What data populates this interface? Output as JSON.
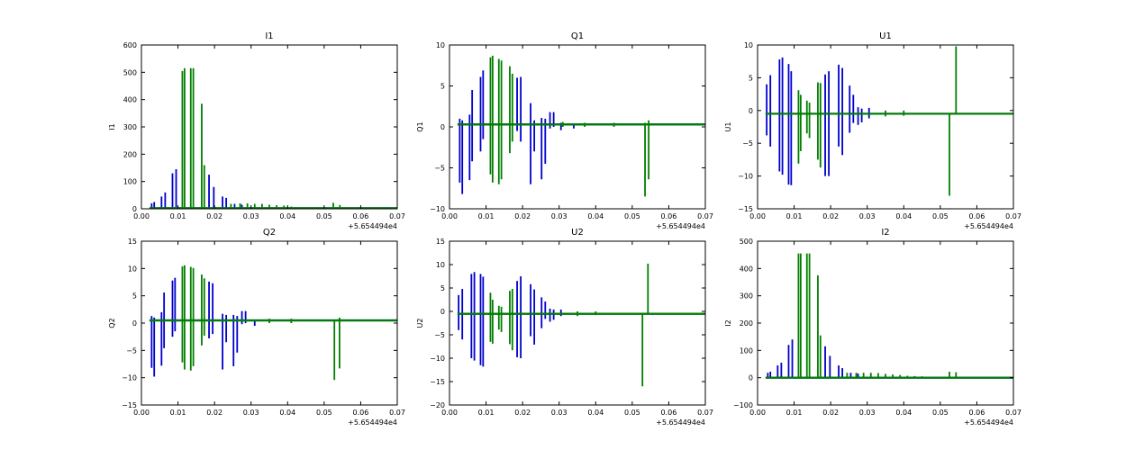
{
  "colors": {
    "series_a": "#0000cc",
    "series_b": "#007f00"
  },
  "chart_data": [
    {
      "type": "line",
      "title": "I1",
      "ylabel": "I1",
      "xlim": [
        0,
        0.07
      ],
      "ylim": [
        0,
        600
      ],
      "x_ticks": [
        "0.00",
        "0.01",
        "0.02",
        "0.03",
        "0.04",
        "0.05",
        "0.06",
        "0.07"
      ],
      "y_ticks": [
        "0",
        "100",
        "200",
        "300",
        "400",
        "500",
        "600"
      ],
      "y_tick_values": [
        0,
        100,
        200,
        300,
        400,
        500,
        600
      ],
      "offset_text": "+5.654494e4",
      "baseline": 2,
      "series": [
        {
          "color": "series_a",
          "spikes": [
            [
              0.0028,
              20,
              0
            ],
            [
              0.0035,
              25,
              0
            ],
            [
              0.0055,
              45,
              0
            ],
            [
              0.0065,
              60,
              0
            ],
            [
              0.0085,
              130,
              0
            ],
            [
              0.0095,
              145,
              0
            ],
            [
              0.0185,
              125,
              0
            ],
            [
              0.0198,
              80,
              0
            ],
            [
              0.0222,
              45,
              0
            ],
            [
              0.0232,
              40,
              0
            ],
            [
              0.0255,
              18,
              0
            ],
            [
              0.0275,
              15,
              0
            ]
          ]
        },
        {
          "color": "series_b",
          "spikes": [
            [
              0.0112,
              505,
              0
            ],
            [
              0.0118,
              515,
              0
            ],
            [
              0.0135,
              515,
              0
            ],
            [
              0.0142,
              515,
              0
            ],
            [
              0.0165,
              385,
              0
            ],
            [
              0.0172,
              160,
              0
            ],
            [
              0.0245,
              18,
              0
            ],
            [
              0.027,
              20,
              0
            ],
            [
              0.029,
              20,
              0
            ],
            [
              0.031,
              18,
              0
            ],
            [
              0.033,
              18,
              0
            ],
            [
              0.035,
              15,
              0
            ],
            [
              0.037,
              13,
              0
            ],
            [
              0.039,
              12,
              0
            ],
            [
              0.041,
              8,
              0
            ],
            [
              0.043,
              6,
              0
            ],
            [
              0.045,
              5,
              0
            ],
            [
              0.047,
              5,
              0
            ],
            [
              0.0525,
              22,
              0
            ],
            [
              0.0543,
              14,
              0
            ]
          ]
        }
      ]
    },
    {
      "type": "line",
      "title": "Q1",
      "ylabel": "Q1",
      "xlim": [
        0,
        0.07
      ],
      "ylim": [
        -10,
        10
      ],
      "x_ticks": [
        "0.00",
        "0.01",
        "0.02",
        "0.03",
        "0.04",
        "0.05",
        "0.06",
        "0.07"
      ],
      "y_ticks": [
        "−10",
        "−5",
        "0",
        "5",
        "10"
      ],
      "y_tick_values": [
        -10,
        -5,
        0,
        5,
        10
      ],
      "offset_text": "+5.654494e4",
      "baseline": 0.3,
      "series": [
        {
          "color": "series_a",
          "spikes": [
            [
              0.0028,
              1,
              -6.8
            ],
            [
              0.0035,
              0.8,
              -8.2
            ],
            [
              0.0055,
              1.5,
              -6.5
            ],
            [
              0.0062,
              4.5,
              -4.2
            ],
            [
              0.0085,
              6.1,
              -3
            ],
            [
              0.0092,
              6.9,
              -1.5
            ],
            [
              0.0185,
              6,
              -0.5
            ],
            [
              0.0195,
              6.1,
              -1.8
            ],
            [
              0.0222,
              2.9,
              -7
            ],
            [
              0.0232,
              0.8,
              -3
            ],
            [
              0.0252,
              1.1,
              -6.4
            ],
            [
              0.0262,
              1,
              -4.5
            ],
            [
              0.0275,
              1.8,
              -0.2
            ],
            [
              0.0285,
              1.8,
              0
            ],
            [
              0.0305,
              0.5,
              -0.4
            ],
            [
              0.034,
              0.4,
              -0.2
            ]
          ]
        },
        {
          "color": "series_b",
          "spikes": [
            [
              0.0112,
              8.5,
              -5.8
            ],
            [
              0.0118,
              8.7,
              -6.8
            ],
            [
              0.0135,
              8.3,
              -7
            ],
            [
              0.0142,
              8.1,
              -6.4
            ],
            [
              0.0165,
              7.4,
              -3.2
            ],
            [
              0.0172,
              6.5,
              -1.8
            ],
            [
              0.0535,
              0.5,
              -8.5
            ],
            [
              0.0545,
              0.8,
              -6.4
            ],
            [
              0.031,
              0.6,
              0
            ],
            [
              0.037,
              0.5,
              0
            ],
            [
              0.045,
              0.5,
              0
            ]
          ]
        }
      ]
    },
    {
      "type": "line",
      "title": "U1",
      "ylabel": "U1",
      "xlim": [
        0,
        0.07
      ],
      "ylim": [
        -15,
        10
      ],
      "x_ticks": [
        "0.00",
        "0.01",
        "0.02",
        "0.03",
        "0.04",
        "0.05",
        "0.06",
        "0.07"
      ],
      "y_ticks": [
        "−15",
        "−10",
        "−5",
        "0",
        "5",
        "10"
      ],
      "y_tick_values": [
        -15,
        -10,
        -5,
        0,
        5,
        10
      ],
      "offset_text": "+5.654494e4",
      "baseline": -0.5,
      "series": [
        {
          "color": "series_a",
          "spikes": [
            [
              0.0025,
              4,
              -3.8
            ],
            [
              0.0035,
              5.4,
              -5.5
            ],
            [
              0.006,
              7.8,
              -9.3
            ],
            [
              0.0068,
              8.1,
              -9.8
            ],
            [
              0.0085,
              7.1,
              -11.3
            ],
            [
              0.0092,
              6,
              -11.4
            ],
            [
              0.0185,
              5.5,
              -10
            ],
            [
              0.0195,
              6,
              -10
            ],
            [
              0.0222,
              7,
              -5.5
            ],
            [
              0.0232,
              6.5,
              -6.8
            ],
            [
              0.0252,
              3.8,
              -3.4
            ],
            [
              0.0262,
              2.4,
              -1.9
            ],
            [
              0.0275,
              0.5,
              -2.2
            ],
            [
              0.0285,
              0.3,
              -1.8
            ],
            [
              0.0305,
              0.4,
              -1.2
            ]
          ]
        },
        {
          "color": "series_b",
          "spikes": [
            [
              0.0112,
              3.1,
              -8.1
            ],
            [
              0.0118,
              2.4,
              -6.2
            ],
            [
              0.0135,
              1.5,
              -3.5
            ],
            [
              0.0142,
              1.2,
              -4.2
            ],
            [
              0.0165,
              4.3,
              -7.5
            ],
            [
              0.0172,
              4.2,
              -8.7
            ],
            [
              0.0525,
              -0.5,
              -13
            ],
            [
              0.0543,
              9.8,
              -0.5
            ],
            [
              0.035,
              0,
              -0.9
            ],
            [
              0.04,
              0,
              -0.8
            ]
          ]
        }
      ]
    },
    {
      "type": "line",
      "title": "Q2",
      "ylabel": "Q2",
      "xlim": [
        0,
        0.07
      ],
      "ylim": [
        -15,
        15
      ],
      "x_ticks": [
        "0.00",
        "0.01",
        "0.02",
        "0.03",
        "0.04",
        "0.05",
        "0.06",
        "0.07"
      ],
      "y_ticks": [
        "−15",
        "−10",
        "−5",
        "0",
        "5",
        "10",
        "15"
      ],
      "y_tick_values": [
        -15,
        -10,
        -5,
        0,
        5,
        10,
        15
      ],
      "offset_text": "+5.654494e4",
      "baseline": 0.5,
      "series": [
        {
          "color": "series_a",
          "spikes": [
            [
              0.0028,
              1.3,
              -8.2
            ],
            [
              0.0035,
              1,
              -9.8
            ],
            [
              0.0055,
              2,
              -7.8
            ],
            [
              0.0062,
              5.6,
              -4.6
            ],
            [
              0.0085,
              7.8,
              -2.5
            ],
            [
              0.0092,
              8.3,
              -1.5
            ],
            [
              0.0185,
              7.6,
              -2.8
            ],
            [
              0.0195,
              7.3,
              -2
            ],
            [
              0.0222,
              1.7,
              -8.5
            ],
            [
              0.0232,
              1.5,
              -3.5
            ],
            [
              0.0252,
              1.5,
              -7.9
            ],
            [
              0.0262,
              1.3,
              -5.4
            ],
            [
              0.0275,
              2.2,
              -0.2
            ],
            [
              0.0285,
              2.2,
              0
            ],
            [
              0.031,
              0.5,
              -0.5
            ]
          ]
        },
        {
          "color": "series_b",
          "spikes": [
            [
              0.0112,
              10.4,
              -7.2
            ],
            [
              0.0118,
              10.6,
              -8.5
            ],
            [
              0.0135,
              10.3,
              -8.7
            ],
            [
              0.0142,
              10.1,
              -7.9
            ],
            [
              0.0165,
              8.9,
              -4.1
            ],
            [
              0.0172,
              8.2,
              -2.3
            ],
            [
              0.0528,
              0.5,
              -10.4
            ],
            [
              0.0542,
              1,
              -8.3
            ],
            [
              0.035,
              0.8,
              0
            ],
            [
              0.041,
              0.8,
              0
            ]
          ]
        }
      ]
    },
    {
      "type": "line",
      "title": "U2",
      "ylabel": "U2",
      "xlim": [
        0,
        0.07
      ],
      "ylim": [
        -20,
        15
      ],
      "x_ticks": [
        "0.00",
        "0.01",
        "0.02",
        "0.03",
        "0.04",
        "0.05",
        "0.06",
        "0.07"
      ],
      "y_ticks": [
        "−20",
        "−15",
        "−10",
        "−5",
        "0",
        "5",
        "10",
        "15"
      ],
      "y_tick_values": [
        -20,
        -15,
        -10,
        -5,
        0,
        5,
        10,
        15
      ],
      "offset_text": "+5.654494e4",
      "baseline": -0.5,
      "series": [
        {
          "color": "series_a",
          "spikes": [
            [
              0.0025,
              3.5,
              -4
            ],
            [
              0.0035,
              4.8,
              -6
            ],
            [
              0.006,
              8,
              -10
            ],
            [
              0.0068,
              8.4,
              -10.5
            ],
            [
              0.0085,
              8,
              -11.5
            ],
            [
              0.0092,
              7.4,
              -11.8
            ],
            [
              0.0185,
              6.5,
              -9.8
            ],
            [
              0.0195,
              7.5,
              -10
            ],
            [
              0.0222,
              5.8,
              -5.3
            ],
            [
              0.0232,
              4.7,
              -7.1
            ],
            [
              0.0252,
              3,
              -3.6
            ],
            [
              0.0262,
              2.1,
              -1.6
            ],
            [
              0.0275,
              0.6,
              -2.2
            ],
            [
              0.0285,
              0.4,
              -1.8
            ],
            [
              0.0305,
              0.4,
              -1
            ]
          ]
        },
        {
          "color": "series_b",
          "spikes": [
            [
              0.0112,
              4,
              -6.5
            ],
            [
              0.0118,
              2.5,
              -6.9
            ],
            [
              0.0135,
              1.2,
              -3.9
            ],
            [
              0.0142,
              1,
              -4.4
            ],
            [
              0.0165,
              4.4,
              -7
            ],
            [
              0.0172,
              4.8,
              -8.3
            ],
            [
              0.0528,
              -0.5,
              -16
            ],
            [
              0.0543,
              10.2,
              -0.5
            ],
            [
              0.035,
              0,
              -1
            ],
            [
              0.04,
              0,
              -0.8
            ]
          ]
        }
      ]
    },
    {
      "type": "line",
      "title": "I2",
      "ylabel": "I2",
      "xlim": [
        0,
        0.07
      ],
      "ylim": [
        -100,
        500
      ],
      "x_ticks": [
        "0.00",
        "0.01",
        "0.02",
        "0.03",
        "0.04",
        "0.05",
        "0.06",
        "0.07"
      ],
      "y_ticks": [
        "−100",
        "0",
        "100",
        "200",
        "300",
        "400",
        "500"
      ],
      "y_tick_values": [
        -100,
        0,
        100,
        200,
        300,
        400,
        500
      ],
      "offset_text": "+5.654494e4",
      "baseline": 0,
      "series": [
        {
          "color": "series_a",
          "spikes": [
            [
              0.0028,
              18,
              0
            ],
            [
              0.0035,
              22,
              0
            ],
            [
              0.0055,
              45,
              0
            ],
            [
              0.0065,
              55,
              0
            ],
            [
              0.0085,
              120,
              0
            ],
            [
              0.0095,
              140,
              0
            ],
            [
              0.0185,
              115,
              0
            ],
            [
              0.0198,
              80,
              0
            ],
            [
              0.0222,
              45,
              0
            ],
            [
              0.0232,
              35,
              0
            ],
            [
              0.0255,
              18,
              0
            ],
            [
              0.0275,
              15,
              0
            ]
          ]
        },
        {
          "color": "series_b",
          "spikes": [
            [
              0.0112,
              455,
              0
            ],
            [
              0.0118,
              455,
              0
            ],
            [
              0.0135,
              455,
              0
            ],
            [
              0.0142,
              455,
              0
            ],
            [
              0.0165,
              375,
              0
            ],
            [
              0.0172,
              155,
              0
            ],
            [
              0.0245,
              18,
              0
            ],
            [
              0.027,
              18,
              0
            ],
            [
              0.029,
              18,
              0
            ],
            [
              0.031,
              18,
              0
            ],
            [
              0.033,
              17,
              0
            ],
            [
              0.035,
              14,
              0
            ],
            [
              0.037,
              12,
              0
            ],
            [
              0.039,
              10,
              0
            ],
            [
              0.041,
              7,
              0
            ],
            [
              0.043,
              6,
              0
            ],
            [
              0.045,
              5,
              0
            ],
            [
              0.0525,
              22,
              0
            ],
            [
              0.0543,
              20,
              0
            ]
          ]
        }
      ]
    }
  ]
}
